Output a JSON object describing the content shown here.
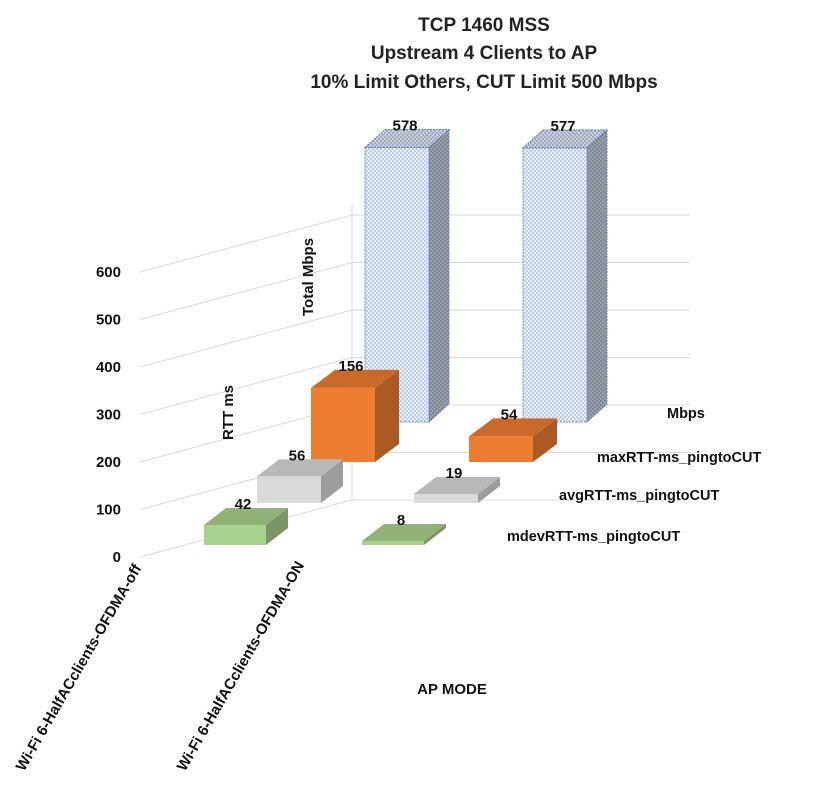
{
  "chart_data": {
    "type": "bar",
    "title_lines": [
      "TCP 1460 MSS",
      "Upstream 4 Clients to AP",
      "10% Limit Others, CUT Limit 500 Mbps"
    ],
    "xlabel": "AP MODE",
    "categories": [
      "Wi-Fi 6-HalfACclients-OFDMA-off",
      "Wi-Fi 6-HalfACclients-OFDMA-ON"
    ],
    "zlim": [
      0,
      600
    ],
    "ticks": [
      "0",
      "100",
      "200",
      "300",
      "400",
      "500",
      "600"
    ],
    "wall_labels": {
      "rtt": "RTT ms",
      "total": "Total Mbps"
    },
    "series": [
      {
        "name": "mdevRTT-ms_pingtoCUT",
        "values": [
          42,
          8
        ],
        "color": "#a9d18e"
      },
      {
        "name": "avgRTT-ms_pingtoCUT",
        "values": [
          56,
          19
        ],
        "color": "#d9d9d9"
      },
      {
        "name": "maxRTT-ms_pingtoCUT",
        "values": [
          156,
          54
        ],
        "color": "#ed7d31"
      },
      {
        "name": "Mbps",
        "values": [
          578,
          577
        ],
        "color": "#dae3f3"
      }
    ]
  }
}
